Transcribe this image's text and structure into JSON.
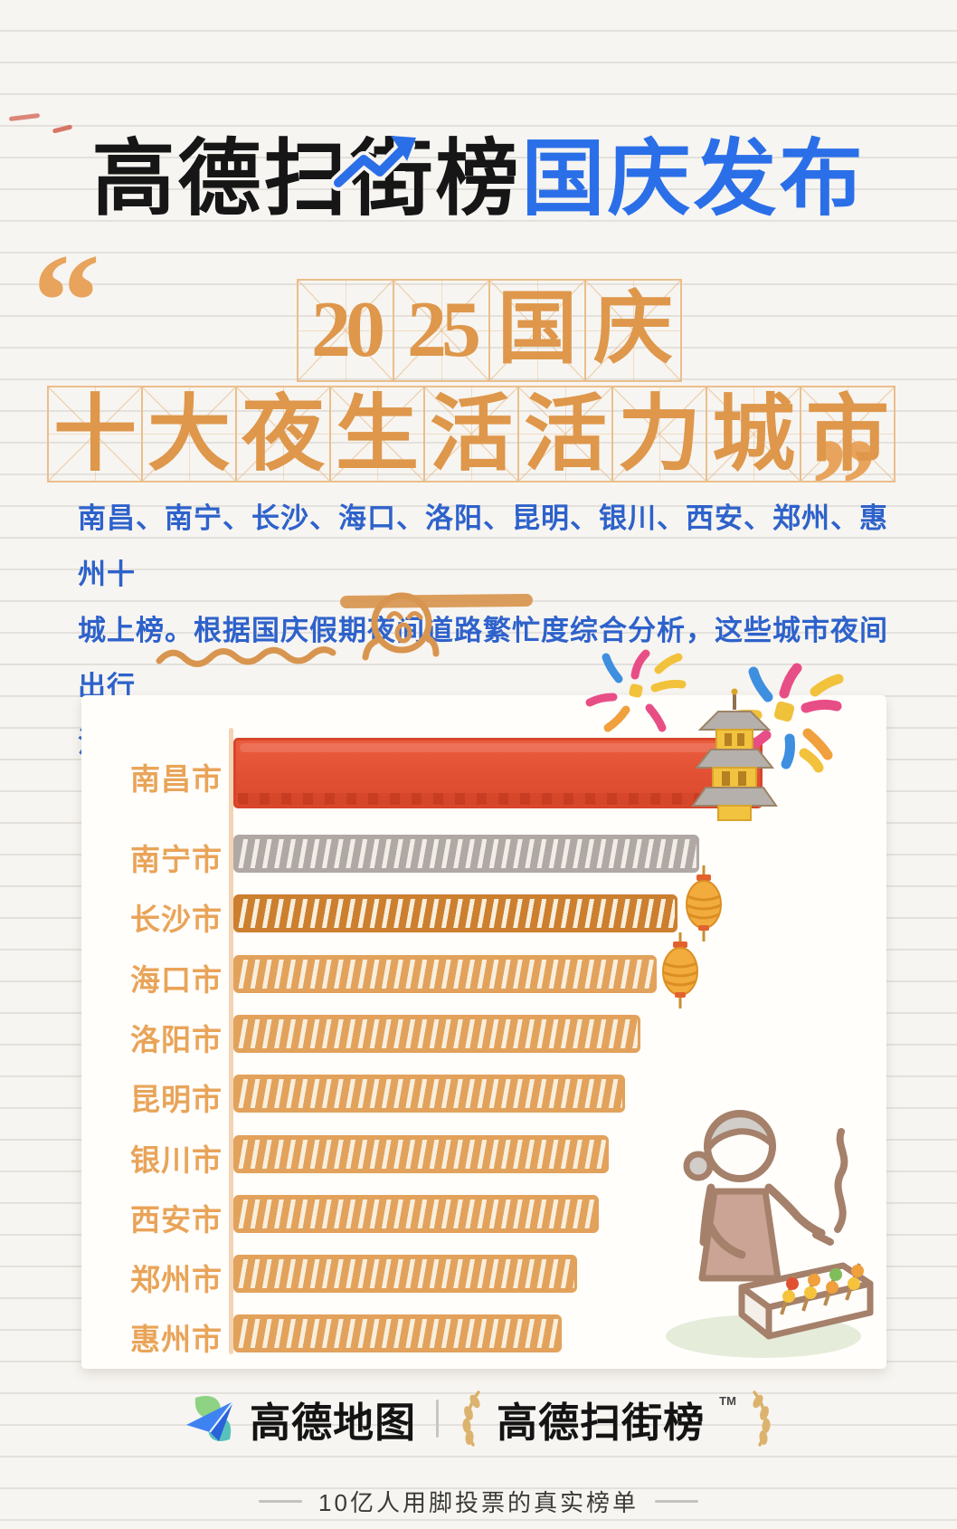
{
  "header": {
    "title_black": "高德扫街榜",
    "title_blue": "国庆发布"
  },
  "quote_block": {
    "open_quote": "“",
    "close_quote": "”",
    "line1_chars": [
      "20",
      "25",
      "国",
      "庆"
    ],
    "line2_chars": [
      "十",
      "大",
      "夜",
      "生",
      "活",
      "活",
      "力",
      "城",
      "市"
    ]
  },
  "paragraph": {
    "lines": [
      "南昌、南宁、长沙、海口、洛阳、昆明、银川、西安、郑州、惠州十",
      "城上榜。根据国庆假期夜间道路繁忙度综合分析，这些城市夜间出行",
      "活跃，夜生活活力突出。"
    ],
    "highlight_text": "夜间道路繁忙度"
  },
  "chart_data": {
    "type": "bar",
    "orientation": "horizontal",
    "title": "2025国庆十大夜生活活力城市",
    "categories": [
      "南昌市",
      "南宁市",
      "长沙市",
      "海口市",
      "洛阳市",
      "昆明市",
      "银川市",
      "西安市",
      "郑州市",
      "惠州市"
    ],
    "values": [
      100,
      88,
      84,
      80,
      77,
      74,
      71,
      69,
      65,
      62
    ],
    "values_note": "no numeric labels shown; values are relative bar lengths estimated from pixels",
    "bar_styles": [
      "solid",
      "hatched",
      "hatched",
      "hatched",
      "hatched",
      "hatched",
      "hatched",
      "hatched",
      "hatched",
      "hatched"
    ],
    "bar_colors": [
      "#E25034",
      "#B0A8A4",
      "#CC7F2E",
      "#E2A25C",
      "#E2A25C",
      "#E2A25C",
      "#E2A25C",
      "#E2A25C",
      "#E2A25C",
      "#E2A25C"
    ],
    "bar_creams": [
      "#FFFFFF",
      "#F2EEE7",
      "#F8EFDD",
      "#F8EFDD",
      "#F8EFDD",
      "#F8EFDD",
      "#F8EFDD",
      "#F8EFDD",
      "#F8EFDD",
      "#F8EFDD"
    ],
    "label_color": "#E9A459",
    "grid": false,
    "legend": false
  },
  "colors": {
    "accent_blue": "#2B6FE8",
    "accent_orange": "#DE974B",
    "paragraph_blue": "#2E62CB",
    "bar_red": "#E25034",
    "paper": "#F7F5F1"
  },
  "icons": {
    "title-trend-arrow": "blue upward zigzag arrow",
    "fireworks": "pink-yellow-blue radiating bursts",
    "pagoda": "golden three-tier pagoda",
    "lantern": "orange hanging lantern",
    "grill-woman": "woman grilling skewers with smoke",
    "smiley-doodle": "hand-drawn smiling face",
    "amap-logo": "blue paper plane on green leaves",
    "wheat-laurel": "tan wheat stalk"
  },
  "footer": {
    "brand1": "高德地图",
    "divider": "|",
    "brand2": "高德扫街榜",
    "tm": "TM",
    "tagline": "10亿人用脚投票的真实榜单"
  }
}
